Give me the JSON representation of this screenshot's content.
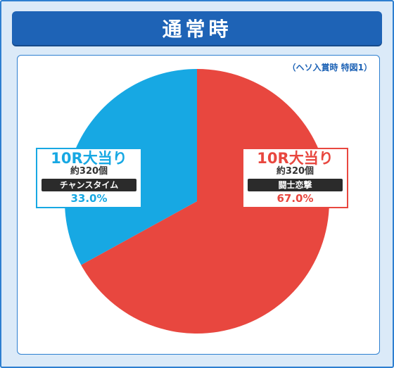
{
  "header": {
    "title": "通常時"
  },
  "note": "（ヘソ入賞時 特図1）",
  "chart_data": {
    "type": "pie",
    "title": "通常時",
    "slices": [
      {
        "title": "10R大当り",
        "count": "約320個",
        "name": "闘士恋撃",
        "label": "67.0%",
        "value": 67.0,
        "color": "#e8473f"
      },
      {
        "title": "10R大当り",
        "count": "約320個",
        "name": "チャンスタイム",
        "label": "33.0%",
        "value": 33.0,
        "color": "#17a8e3"
      }
    ]
  }
}
